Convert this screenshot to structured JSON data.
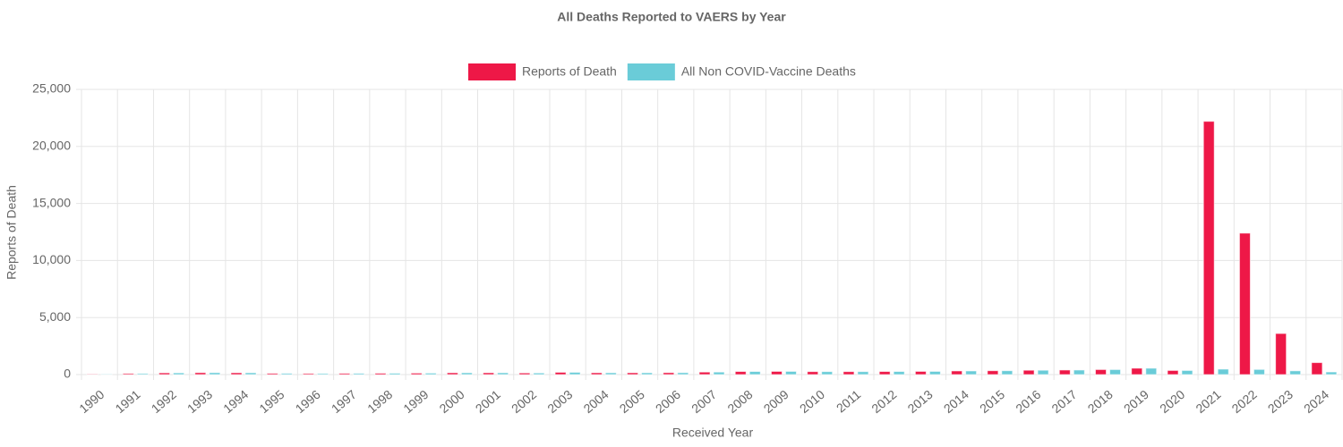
{
  "chart_data": {
    "type": "bar",
    "title": "All Deaths Reported to VAERS by Year",
    "x_label": "Received Year",
    "y_label": "Reports of Death",
    "categories": [
      "1990",
      "1991",
      "1992",
      "1993",
      "1994",
      "1995",
      "1996",
      "1997",
      "1998",
      "1999",
      "2000",
      "2001",
      "2002",
      "2003",
      "2004",
      "2005",
      "2006",
      "2007",
      "2008",
      "2009",
      "2010",
      "2011",
      "2012",
      "2013",
      "2014",
      "2015",
      "2016",
      "2017",
      "2018",
      "2019",
      "2020",
      "2021",
      "2022",
      "2023",
      "2024"
    ],
    "series": [
      {
        "name": "Reports of Death",
        "color": "#ee1847",
        "values": [
          30,
          100,
          150,
          170,
          160,
          110,
          100,
          110,
          120,
          130,
          160,
          160,
          140,
          200,
          160,
          160,
          170,
          220,
          270,
          280,
          260,
          260,
          270,
          280,
          320,
          340,
          380,
          400,
          440,
          560,
          360,
          22200,
          12400,
          3600,
          1050
        ]
      },
      {
        "name": "All Non COVID-Vaccine Deaths",
        "color": "#6accd8",
        "values": [
          30,
          100,
          150,
          170,
          160,
          110,
          100,
          110,
          120,
          130,
          160,
          160,
          140,
          200,
          160,
          160,
          170,
          220,
          270,
          280,
          260,
          260,
          270,
          280,
          320,
          340,
          380,
          400,
          440,
          560,
          360,
          480,
          450,
          330,
          230
        ]
      }
    ],
    "ylim": [
      0,
      25000
    ],
    "yticks": [
      {
        "value": 0,
        "label": "0"
      },
      {
        "value": 5000,
        "label": "5,000"
      },
      {
        "value": 10000,
        "label": "10,000"
      },
      {
        "value": 15000,
        "label": "15,000"
      },
      {
        "value": 20000,
        "label": "20,000"
      },
      {
        "value": 25000,
        "label": "25,000"
      }
    ],
    "grid": true,
    "legend": "top"
  }
}
